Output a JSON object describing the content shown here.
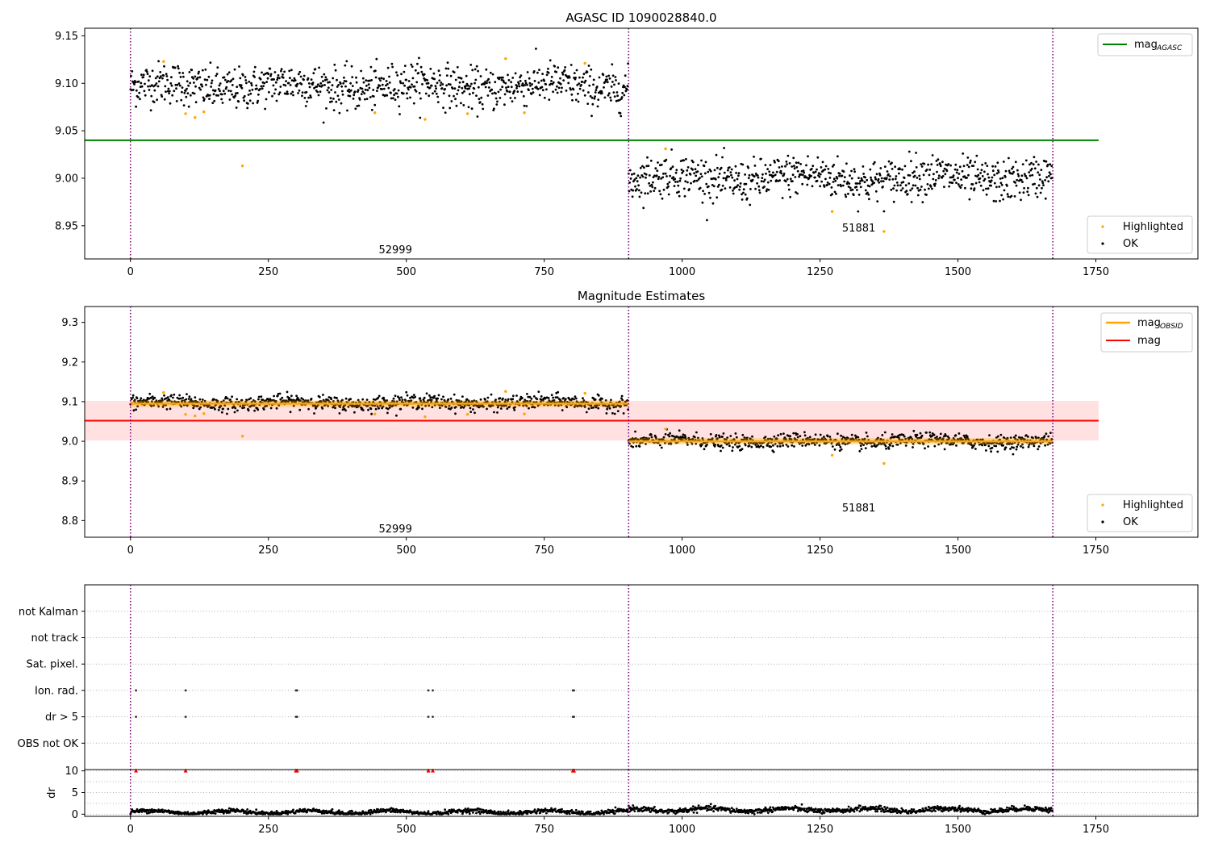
{
  "chart_data": [
    {
      "type": "scatter",
      "title": "AGASC ID 1090028840.0",
      "xlim": [
        -83,
        1935
      ],
      "ylim": [
        8.915,
        9.158
      ],
      "xticks": [
        0,
        250,
        500,
        750,
        1000,
        1250,
        1500,
        1750
      ],
      "yticks": [
        8.95,
        9.0,
        9.05,
        9.1,
        9.15
      ],
      "ytick_labels": [
        "8.95",
        "9.00",
        "9.05",
        "9.10",
        "9.15"
      ],
      "grid": false,
      "vlines": [
        0,
        903,
        1672
      ],
      "hlines": [
        {
          "name": "mag_AGASC",
          "y": 9.04,
          "x": [
            -83,
            1755
          ],
          "color": "#008000"
        }
      ],
      "segments": [
        {
          "x": [
            0,
            903
          ],
          "center": 9.097,
          "spread": 0.011
        },
        {
          "x": [
            903,
            1672
          ],
          "center": 9.0,
          "spread": 0.011
        }
      ],
      "highlighted": [
        [
          60,
          9.123
        ],
        [
          100,
          9.068
        ],
        [
          117,
          9.064
        ],
        [
          133,
          9.07
        ],
        [
          203,
          9.013
        ],
        [
          443,
          9.069
        ],
        [
          534,
          9.062
        ],
        [
          611,
          9.068
        ],
        [
          680,
          9.126
        ],
        [
          714,
          9.069
        ],
        [
          824,
          9.121
        ],
        [
          970,
          9.031
        ],
        [
          1272,
          8.965
        ],
        [
          1366,
          8.944
        ]
      ],
      "annotations": [
        {
          "text": "52999",
          "x": 450,
          "y": 8.921
        },
        {
          "text": "51881",
          "x": 1290,
          "y": 8.944
        }
      ],
      "legend_upper": {
        "position": "top-right",
        "entries": [
          {
            "label_main": "mag",
            "label_sub": "AGASC",
            "color": "#008000"
          }
        ]
      },
      "legend_lower": {
        "position": "bottom-right",
        "entries": [
          {
            "label": "Highlighted",
            "color": "#ffa500"
          },
          {
            "label": "OK",
            "color": "#000000"
          }
        ]
      }
    },
    {
      "type": "scatter",
      "title": "Magnitude Estimates",
      "xlim": [
        -83,
        1935
      ],
      "ylim": [
        8.758,
        9.34
      ],
      "xticks": [
        0,
        250,
        500,
        750,
        1000,
        1250,
        1500,
        1750
      ],
      "yticks": [
        8.8,
        8.9,
        9.0,
        9.1,
        9.2,
        9.3
      ],
      "ytick_labels": [
        "8.8",
        "8.9",
        "9.0",
        "9.1",
        "9.2",
        "9.3"
      ],
      "grid": false,
      "vlines": [
        0,
        903,
        1672
      ],
      "band": {
        "y": [
          9.002,
          9.102
        ],
        "x": [
          -83,
          1755
        ],
        "color": "#ffe1e1"
      },
      "hlines": [
        {
          "name": "mag",
          "y": 9.052,
          "x": [
            -83,
            1755
          ],
          "color": "#ff0000"
        }
      ],
      "obsid_lines": [
        {
          "x": [
            0,
            903
          ],
          "y": 9.095
        },
        {
          "x": [
            903,
            1672
          ],
          "y": 9.0
        }
      ],
      "segments": [
        {
          "x": [
            0,
            903
          ],
          "center": 9.097,
          "spread": 0.009
        },
        {
          "x": [
            903,
            1672
          ],
          "center": 9.0,
          "spread": 0.009
        }
      ],
      "highlighted": [
        [
          60,
          9.123
        ],
        [
          100,
          9.068
        ],
        [
          117,
          9.064
        ],
        [
          133,
          9.07
        ],
        [
          203,
          9.013
        ],
        [
          443,
          9.069
        ],
        [
          534,
          9.062
        ],
        [
          611,
          9.068
        ],
        [
          680,
          9.126
        ],
        [
          714,
          9.069
        ],
        [
          824,
          9.121
        ],
        [
          970,
          9.031
        ],
        [
          1272,
          8.965
        ],
        [
          1366,
          8.944
        ]
      ],
      "annotations": [
        {
          "text": "52999",
          "x": 450,
          "y": 8.77
        },
        {
          "text": "51881",
          "x": 1290,
          "y": 8.823
        }
      ],
      "legend_upper": {
        "position": "top-right",
        "entries": [
          {
            "label_main": "mag",
            "label_sub": "OBSID",
            "color": "#ffa500"
          },
          {
            "label": "mag",
            "color": "#ff0000"
          }
        ]
      },
      "legend_lower": {
        "position": "bottom-right",
        "entries": [
          {
            "label": "Highlighted",
            "color": "#ffa500"
          },
          {
            "label": "OK",
            "color": "#000000"
          }
        ]
      }
    },
    {
      "type": "scatter",
      "xlim": [
        -83,
        1935
      ],
      "categories": [
        "OBS not OK",
        "dr > 5",
        "Ion. rad.",
        "Sat. pixel.",
        "not track",
        "not Kalman"
      ],
      "flags": [
        {
          "category": "dr > 5",
          "x": [
            10,
            100,
            300,
            302,
            540,
            548,
            802,
            804
          ]
        },
        {
          "category": "Ion. rad.",
          "x": [
            10,
            100,
            300,
            302,
            540,
            548,
            802,
            804
          ]
        }
      ],
      "vlines": [
        0,
        903,
        1672
      ],
      "grid": "horizontal dotted"
    },
    {
      "type": "line",
      "xlim": [
        -83,
        1935
      ],
      "ylim": [
        -0.5,
        10.3
      ],
      "ylabel": "dr",
      "xticks": [
        0,
        250,
        500,
        750,
        1000,
        1250,
        1500,
        1750
      ],
      "yticks": [
        0,
        5,
        10
      ],
      "ytick_labels": [
        "0",
        "5",
        "10"
      ],
      "vlines": [
        0,
        903,
        1672
      ],
      "segments": [
        {
          "x": [
            0,
            903
          ],
          "level": 0.5,
          "spread": 0.25
        },
        {
          "x": [
            903,
            1672
          ],
          "level": 1.0,
          "spread": 0.3
        }
      ],
      "clipped_markers": {
        "y": 10,
        "x": [
          10,
          100,
          300,
          302,
          540,
          548,
          802,
          804
        ],
        "color": "#ff0000"
      }
    }
  ]
}
